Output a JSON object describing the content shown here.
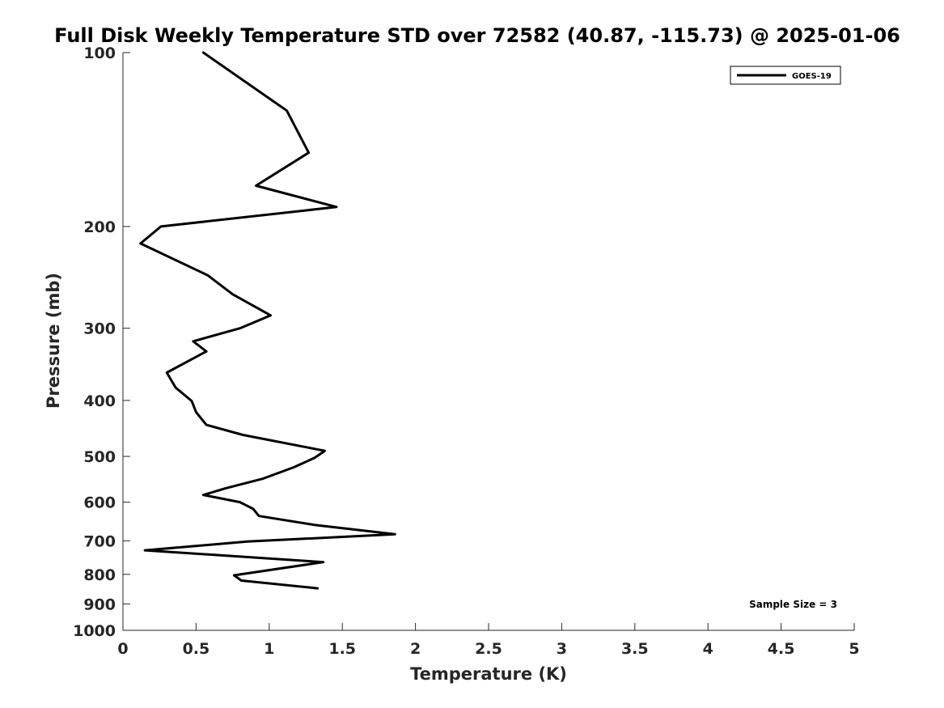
{
  "chart_data": {
    "type": "line",
    "title": "Full Disk Weekly Temperature STD over 72582 (40.87, -115.73) @ 2025-01-06",
    "xlabel": "Temperature (K)",
    "ylabel": "Pressure (mb)",
    "xlim": [
      0,
      5
    ],
    "ylim": [
      100,
      1000
    ],
    "y_scale": "log",
    "y_reversed": true,
    "grid": false,
    "legend_position": "top-right",
    "x_ticks": [
      0,
      0.5,
      1,
      1.5,
      2,
      2.5,
      3,
      3.5,
      4,
      4.5,
      5
    ],
    "x_tick_labels": [
      "0",
      "0.5",
      "1",
      "1.5",
      "2",
      "2.5",
      "3",
      "3.5",
      "4",
      "4.5",
      "5"
    ],
    "y_ticks": [
      100,
      200,
      300,
      400,
      500,
      600,
      700,
      800,
      900,
      1000
    ],
    "y_tick_labels": [
      "100",
      "200",
      "300",
      "400",
      "500",
      "600",
      "700",
      "800",
      "900",
      "1000"
    ],
    "series": [
      {
        "name": "GOES-19",
        "color": "#000000",
        "points": [
          {
            "x": 0.55,
            "y": 100
          },
          {
            "x": 1.12,
            "y": 126
          },
          {
            "x": 1.27,
            "y": 149
          },
          {
            "x": 0.91,
            "y": 170
          },
          {
            "x": 1.46,
            "y": 185
          },
          {
            "x": 0.26,
            "y": 200
          },
          {
            "x": 0.12,
            "y": 214
          },
          {
            "x": 0.58,
            "y": 243
          },
          {
            "x": 0.75,
            "y": 262
          },
          {
            "x": 1.01,
            "y": 285
          },
          {
            "x": 0.8,
            "y": 300
          },
          {
            "x": 0.48,
            "y": 316
          },
          {
            "x": 0.57,
            "y": 329
          },
          {
            "x": 0.3,
            "y": 358
          },
          {
            "x": 0.36,
            "y": 380
          },
          {
            "x": 0.47,
            "y": 401
          },
          {
            "x": 0.5,
            "y": 419
          },
          {
            "x": 0.57,
            "y": 441
          },
          {
            "x": 0.82,
            "y": 459
          },
          {
            "x": 1.38,
            "y": 489
          },
          {
            "x": 1.31,
            "y": 503
          },
          {
            "x": 1.17,
            "y": 522
          },
          {
            "x": 0.96,
            "y": 546
          },
          {
            "x": 0.7,
            "y": 568
          },
          {
            "x": 0.55,
            "y": 583
          },
          {
            "x": 0.8,
            "y": 600
          },
          {
            "x": 0.89,
            "y": 616
          },
          {
            "x": 0.93,
            "y": 634
          },
          {
            "x": 1.31,
            "y": 657
          },
          {
            "x": 1.86,
            "y": 682
          },
          {
            "x": 0.85,
            "y": 702
          },
          {
            "x": 0.15,
            "y": 727
          },
          {
            "x": 1.37,
            "y": 762
          },
          {
            "x": 0.76,
            "y": 803
          },
          {
            "x": 0.81,
            "y": 820
          },
          {
            "x": 1.33,
            "y": 846
          }
        ]
      }
    ],
    "annotations": [
      {
        "text": "Sample Size = 3",
        "position": "bottom-right"
      }
    ]
  }
}
